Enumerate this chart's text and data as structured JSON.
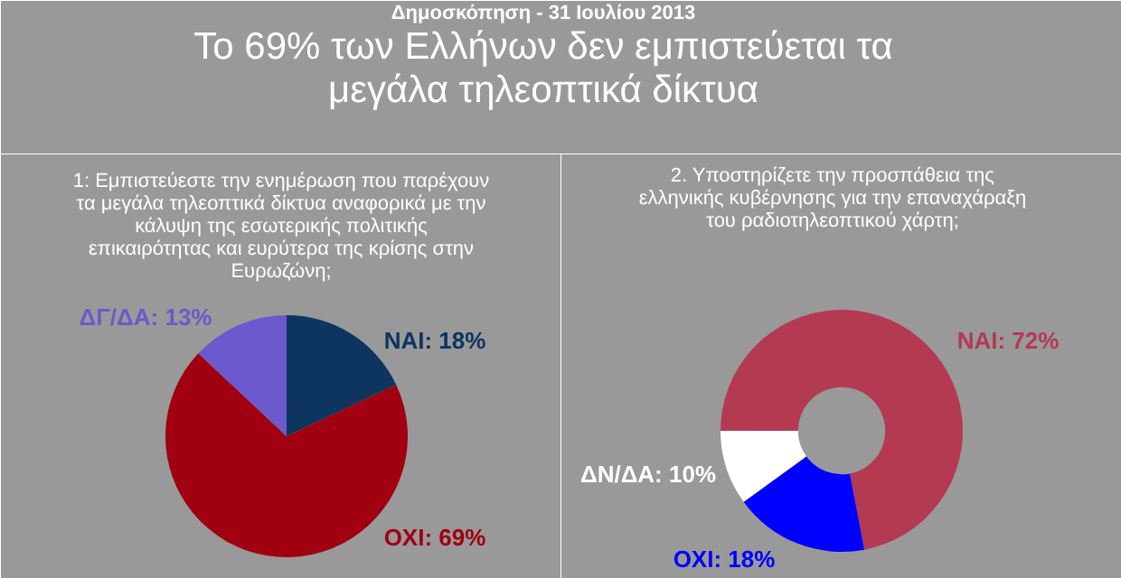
{
  "chart_data": [
    {
      "type": "other",
      "title": "Το 69% των Ελλήνων δεν εμπιστεύεται τα\nμεγάλα τηλεοπτικά δίκτυα",
      "subtitle": "Δημοσκόπηση - 31 Ιουλίου 2013"
    },
    {
      "type": "pie",
      "title": "1: Εμπιστεύεστε την ενημέρωση που παρέχουν\nτα μεγάλα τηλεοπτικά δίκτυα αναφορικά με την\nκάλυψη της εσωτερικής πολιτικής\nεπικαιρότητας και ευρύτερα της κρίσης στην\nΕυρωζώνη;",
      "categories": [
        "ΝΑΙ",
        "ΟΧΙ",
        "ΔΓ/ΔΑ"
      ],
      "values": [
        18,
        69,
        13
      ],
      "colors": [
        "#0d3560",
        "#a0000f",
        "#6a5acd"
      ],
      "value_labels": [
        "18%",
        "69%",
        "13%"
      ]
    },
    {
      "type": "donut",
      "title": "2. Υποστηρίζετε την προσπάθεια της\nελληνικής κυβέρνησης για την επαναχάραξη\nτου ραδιοτηλεοπτικού χάρτη;",
      "categories": [
        "ΝΑΙ",
        "ΟΧΙ",
        "ΔΝ/ΔΑ"
      ],
      "values": [
        72,
        18,
        10
      ],
      "colors": [
        "#b43a52",
        "#0000ff",
        "#ffffff"
      ],
      "value_labels": [
        "72%",
        "18%",
        "10%"
      ]
    }
  ]
}
